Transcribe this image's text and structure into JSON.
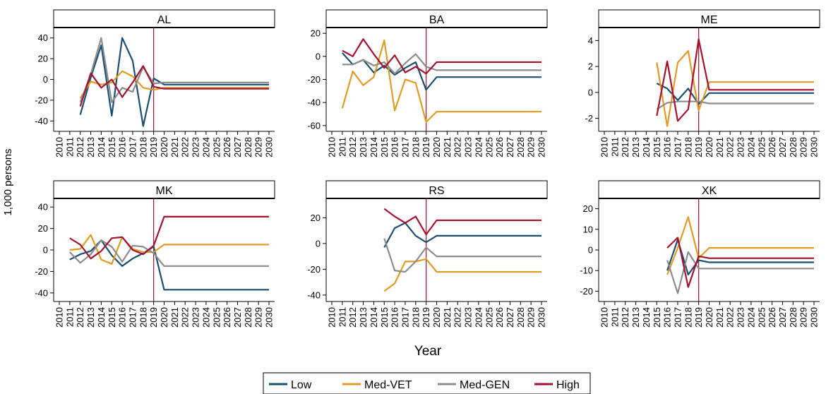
{
  "chart_data": {
    "type": "line",
    "xlabel": "Year",
    "ylabel": "1,000 persons",
    "x": [
      2010,
      2011,
      2012,
      2013,
      2014,
      2015,
      2016,
      2017,
      2018,
      2019,
      2020,
      2021,
      2022,
      2023,
      2024,
      2025,
      2026,
      2027,
      2028,
      2029,
      2030
    ],
    "reference_line_x": 2019,
    "legend": {
      "placement": "bottom-center",
      "entries": [
        {
          "name": "Low",
          "color": "#1a4f72"
        },
        {
          "name": "Med-VET",
          "color": "#e09b24"
        },
        {
          "name": "Med-GEN",
          "color": "#8c8c8c"
        },
        {
          "name": "High",
          "color": "#a3122e"
        }
      ]
    },
    "panels": [
      {
        "title": "AL",
        "ylim": [
          -50,
          50
        ],
        "yticks": [
          -40,
          -20,
          0,
          20,
          40
        ],
        "series": [
          {
            "name": "Low",
            "x": [
              2012,
              2013,
              2014,
              2015,
              2016,
              2017,
              2018,
              2019,
              2020,
              2030
            ],
            "values": [
              -34,
              2,
              33,
              -35,
              40,
              18,
              -45,
              1,
              -5,
              -5
            ]
          },
          {
            "name": "Med-VET",
            "x": [
              2012,
              2013,
              2014,
              2015,
              2016,
              2017,
              2018,
              2019,
              2020,
              2030
            ],
            "values": [
              -18,
              -2,
              -5,
              -3,
              8,
              3,
              -8,
              -10,
              -8,
              -8
            ]
          },
          {
            "name": "Med-GEN",
            "x": [
              2012,
              2013,
              2014,
              2015,
              2016,
              2017,
              2018,
              2019,
              2020,
              2030
            ],
            "values": [
              -22,
              5,
              40,
              -22,
              -8,
              -12,
              12,
              -4,
              -3,
              -3
            ]
          },
          {
            "name": "High",
            "x": [
              2012,
              2013,
              2014,
              2015,
              2016,
              2017,
              2018,
              2019,
              2020,
              2030
            ],
            "values": [
              -26,
              6,
              -8,
              0,
              -17,
              -3,
              13,
              -7,
              -9,
              -9
            ]
          }
        ]
      },
      {
        "title": "BA",
        "ylim": [
          -65,
          25
        ],
        "yticks": [
          -60,
          -40,
          -20,
          0,
          20
        ],
        "series": [
          {
            "name": "Low",
            "x": [
              2011,
              2012,
              2013,
              2014,
              2015,
              2016,
              2017,
              2018,
              2019,
              2020,
              2030
            ],
            "values": [
              3,
              -7,
              -3,
              -14,
              -8,
              -16,
              -10,
              -5,
              -29,
              -18,
              -18
            ]
          },
          {
            "name": "Med-VET",
            "x": [
              2011,
              2012,
              2013,
              2014,
              2015,
              2016,
              2017,
              2018,
              2019,
              2020,
              2030
            ],
            "values": [
              -45,
              -13,
              -25,
              -18,
              14,
              -47,
              -20,
              -23,
              -57,
              -48,
              -48
            ]
          },
          {
            "name": "Med-GEN",
            "x": [
              2011,
              2012,
              2013,
              2014,
              2015,
              2016,
              2017,
              2018,
              2019,
              2020,
              2030
            ],
            "values": [
              -7,
              -7,
              -3,
              -8,
              -5,
              -15,
              -6,
              2,
              -9,
              -12,
              -12
            ]
          },
          {
            "name": "High",
            "x": [
              2011,
              2012,
              2013,
              2014,
              2015,
              2016,
              2017,
              2018,
              2019,
              2020,
              2030
            ],
            "values": [
              5,
              0,
              15,
              2,
              -10,
              1,
              -14,
              -9,
              -15,
              -5,
              -5
            ]
          }
        ]
      },
      {
        "title": "ME",
        "ylim": [
          -3,
          5
        ],
        "yticks": [
          -2,
          0,
          2,
          4
        ],
        "series": [
          {
            "name": "Low",
            "x": [
              2015,
              2016,
              2017,
              2018,
              2019,
              2020,
              2030
            ],
            "values": [
              0.7,
              0.3,
              -0.6,
              0.3,
              -0.9,
              -0.05,
              -0.05
            ]
          },
          {
            "name": "Med-VET",
            "x": [
              2015,
              2016,
              2017,
              2018,
              2019,
              2020,
              2030
            ],
            "values": [
              2.3,
              -2.6,
              2.3,
              3.2,
              -1.4,
              0.8,
              0.8
            ]
          },
          {
            "name": "Med-GEN",
            "x": [
              2015,
              2016,
              2017,
              2018,
              2019,
              2020,
              2030
            ],
            "values": [
              -1.3,
              -0.8,
              -0.7,
              -0.7,
              -0.7,
              -0.85,
              -0.85
            ]
          },
          {
            "name": "High",
            "x": [
              2015,
              2016,
              2017,
              2018,
              2019,
              2020,
              2030
            ],
            "values": [
              -1.8,
              2.4,
              -2.2,
              -1.3,
              4.1,
              0.2,
              0.2
            ]
          }
        ]
      },
      {
        "title": "MK",
        "ylim": [
          -48,
          48
        ],
        "yticks": [
          -40,
          -20,
          0,
          20,
          40
        ],
        "series": [
          {
            "name": "Low",
            "x": [
              2011,
              2012,
              2013,
              2014,
              2015,
              2016,
              2017,
              2018,
              2019,
              2020,
              2030
            ],
            "values": [
              -9,
              -4,
              -1,
              9,
              -5,
              -15,
              -8,
              -3,
              3,
              -37,
              -37
            ]
          },
          {
            "name": "Med-VET",
            "x": [
              2011,
              2012,
              2013,
              2014,
              2015,
              2016,
              2017,
              2018,
              2019,
              2020,
              2030
            ],
            "values": [
              0,
              1,
              14,
              -9,
              -13,
              12,
              1,
              -2,
              -2,
              5,
              5
            ]
          },
          {
            "name": "Med-GEN",
            "x": [
              2011,
              2012,
              2013,
              2014,
              2015,
              2016,
              2017,
              2018,
              2019,
              2020,
              2030
            ],
            "values": [
              -2,
              -12,
              -4,
              9,
              3,
              -11,
              4,
              3,
              -3,
              -15,
              -15
            ]
          },
          {
            "name": "High",
            "x": [
              2011,
              2012,
              2013,
              2014,
              2015,
              2016,
              2017,
              2018,
              2019,
              2020,
              2030
            ],
            "values": [
              11,
              5,
              -8,
              -1,
              11,
              12,
              0,
              -4,
              4,
              31,
              31
            ]
          }
        ]
      },
      {
        "title": "RS",
        "ylim": [
          -45,
          35
        ],
        "yticks": [
          -40,
          -20,
          0,
          20
        ],
        "series": [
          {
            "name": "Low",
            "x": [
              2015,
              2016,
              2017,
              2018,
              2019,
              2020,
              2030
            ],
            "values": [
              -3,
              12,
              16,
              6,
              1,
              6,
              6
            ]
          },
          {
            "name": "Med-VET",
            "x": [
              2015,
              2016,
              2017,
              2018,
              2019,
              2020,
              2030
            ],
            "values": [
              -37,
              -31,
              -14,
              -14,
              -12,
              -22,
              -22
            ]
          },
          {
            "name": "Med-GEN",
            "x": [
              2015,
              2016,
              2017,
              2018,
              2019,
              2020,
              2030
            ],
            "values": [
              4,
              -21,
              -22,
              -14,
              -3,
              -10,
              -10
            ]
          },
          {
            "name": "High",
            "x": [
              2015,
              2016,
              2017,
              2018,
              2019,
              2020,
              2030
            ],
            "values": [
              27,
              21,
              16,
              21,
              7,
              18,
              18
            ]
          }
        ]
      },
      {
        "title": "XK",
        "ylim": [
          -25,
          25
        ],
        "yticks": [
          -20,
          -10,
          0,
          10,
          20
        ],
        "series": [
          {
            "name": "Low",
            "x": [
              2016,
              2017,
              2018,
              2019,
              2020,
              2030
            ],
            "values": [
              -10,
              5,
              -12,
              -5,
              -6,
              -6
            ]
          },
          {
            "name": "Med-VET",
            "x": [
              2016,
              2017,
              2018,
              2019,
              2020,
              2030
            ],
            "values": [
              -12,
              1,
              16,
              -4,
              1,
              1
            ]
          },
          {
            "name": "Med-GEN",
            "x": [
              2016,
              2017,
              2018,
              2019,
              2020,
              2030
            ],
            "values": [
              -5,
              -21,
              -1,
              -9,
              -9,
              -9
            ]
          },
          {
            "name": "High",
            "x": [
              2016,
              2017,
              2018,
              2019,
              2020,
              2030
            ],
            "values": [
              1,
              6,
              -18,
              -3,
              -4,
              -4
            ]
          }
        ]
      }
    ]
  }
}
